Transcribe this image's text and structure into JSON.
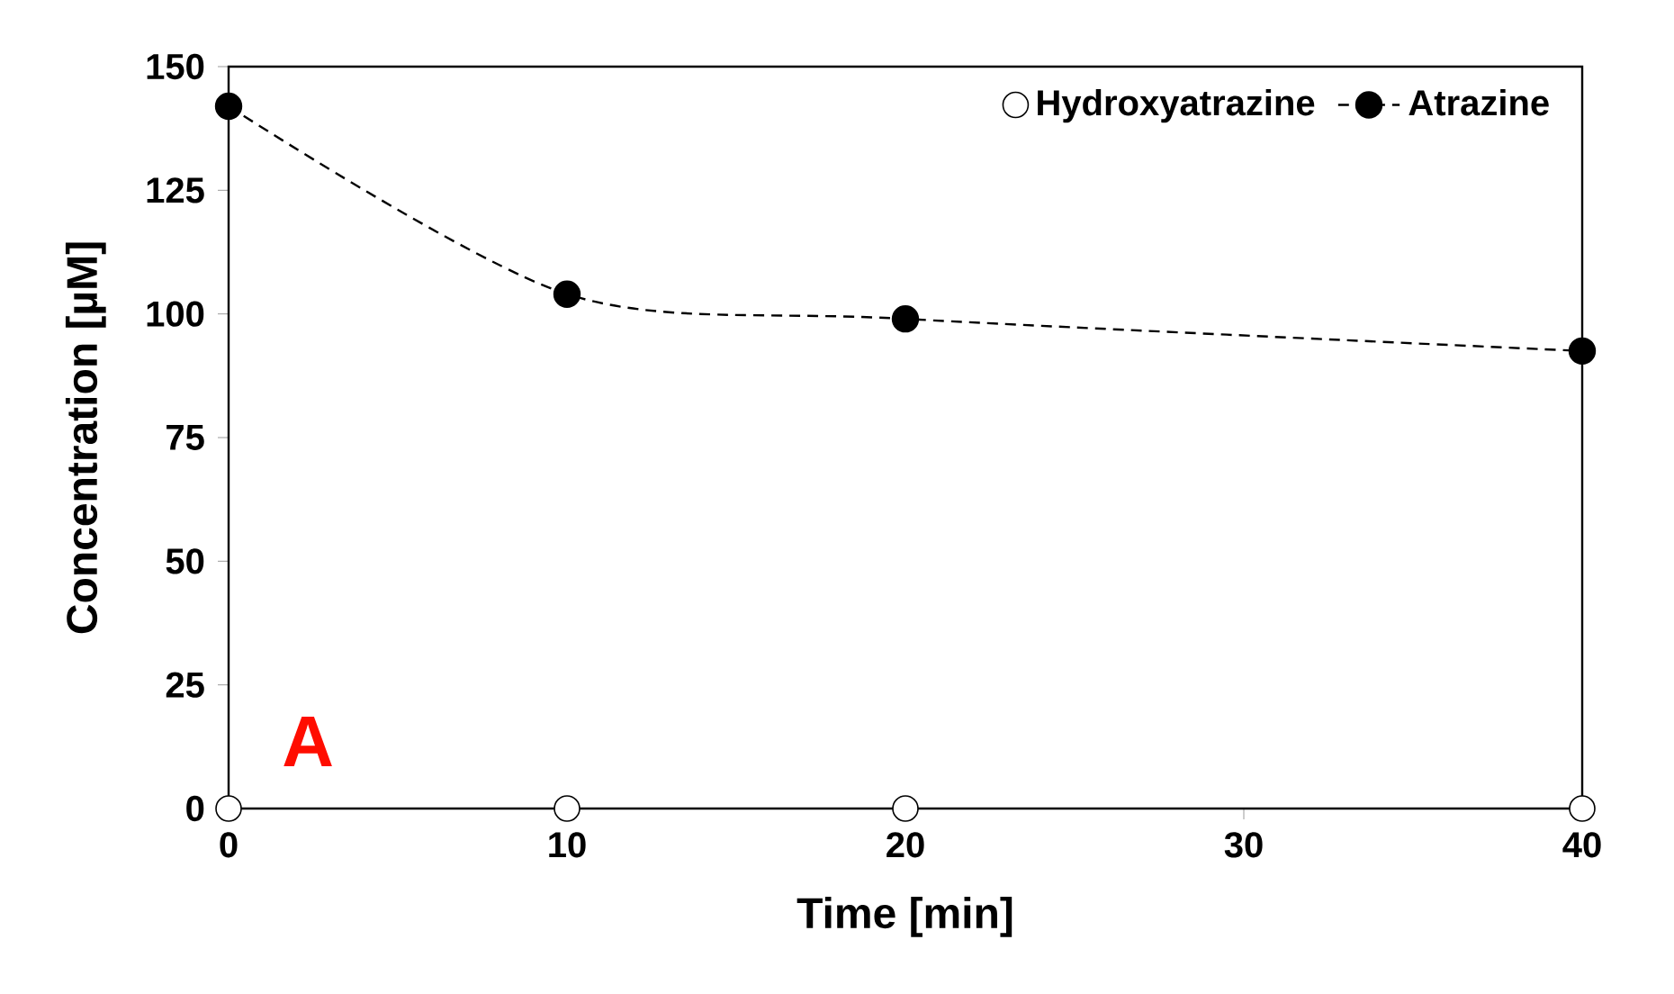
{
  "chart_data": {
    "type": "line",
    "xlabel": "Time [min]",
    "ylabel": "Concentration [µM]",
    "x": [
      0,
      10,
      20,
      40
    ],
    "series": [
      {
        "name": "Hydroxyatrazine",
        "type": "scatter",
        "color": "#ffffff",
        "marker": "circle",
        "values": [
          0,
          0,
          0,
          0
        ]
      },
      {
        "name": "Atrazine",
        "color": "#000000",
        "marker": "circle",
        "line_style": "dashed",
        "values": [
          142,
          104,
          99,
          92.5
        ]
      }
    ],
    "xlim": [
      0,
      40
    ],
    "ylim": [
      0,
      150
    ],
    "xticks": [
      0,
      10,
      20,
      30,
      40
    ],
    "yticks": [
      0,
      25,
      50,
      75,
      100,
      125,
      150
    ],
    "grid": false,
    "legend": "top right",
    "annotations": [
      "A"
    ]
  }
}
